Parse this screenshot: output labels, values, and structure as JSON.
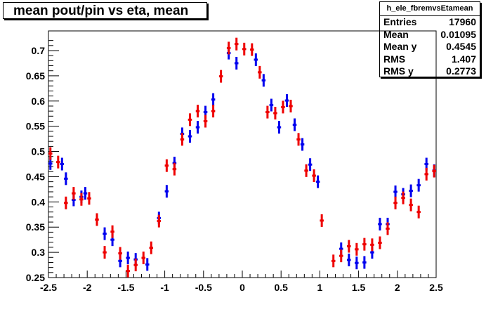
{
  "title": "mean pout/pin vs eta, mean",
  "stats": {
    "name": "h_ele_fbremvsEtamean",
    "rows": [
      {
        "label": "Entries",
        "value": "17960"
      },
      {
        "label": "Mean",
        "value": "0.01095"
      },
      {
        "label": "Mean y",
        "value": "0.4545"
      },
      {
        "label": "RMS",
        "value": "1.407"
      },
      {
        "label": "RMS y",
        "value": "0.2773"
      }
    ]
  },
  "chart_data": {
    "type": "scatter",
    "title": "mean pout/pin vs eta, mean",
    "xlabel": "",
    "ylabel": "",
    "xlim": [
      -2.5,
      2.5
    ],
    "ylim": [
      0.25,
      0.72
    ],
    "x_ticks": [
      "-2.5",
      "-2",
      "-1.5",
      "-1",
      "-0.5",
      "0",
      "0.5",
      "1",
      "1.5",
      "2",
      "2.5"
    ],
    "y_ticks": [
      "0.25",
      "0.3",
      "0.35",
      "0.4",
      "0.45",
      "0.5",
      "0.55",
      "0.6",
      "0.65",
      "0.7"
    ],
    "bin_half_width": 0.025,
    "series": [
      {
        "color": "#0000ee",
        "points": [
          [
            -2.475,
            0.476
          ],
          [
            -2.325,
            0.475
          ],
          [
            -2.275,
            0.446
          ],
          [
            -2.175,
            0.404
          ],
          [
            -2.075,
            0.41
          ],
          [
            -2.025,
            0.417
          ],
          [
            -1.775,
            0.337
          ],
          [
            -1.675,
            0.325
          ],
          [
            -1.575,
            0.283
          ],
          [
            -1.475,
            0.289
          ],
          [
            -1.375,
            0.286
          ],
          [
            -1.225,
            0.276
          ],
          [
            -1.075,
            0.368
          ],
          [
            -0.975,
            0.421
          ],
          [
            -0.875,
            0.477
          ],
          [
            -0.775,
            0.535
          ],
          [
            -0.675,
            0.53
          ],
          [
            -0.575,
            0.548
          ],
          [
            -0.475,
            0.578
          ],
          [
            -0.375,
            0.603
          ],
          [
            -0.175,
            0.695
          ],
          [
            -0.075,
            0.675
          ],
          [
            0.175,
            0.682
          ],
          [
            0.275,
            0.641
          ],
          [
            0.375,
            0.592
          ],
          [
            0.475,
            0.548
          ],
          [
            0.575,
            0.601
          ],
          [
            0.675,
            0.553
          ],
          [
            0.775,
            0.514
          ],
          [
            0.875,
            0.474
          ],
          [
            0.975,
            0.44
          ],
          [
            1.275,
            0.307
          ],
          [
            1.375,
            0.285
          ],
          [
            1.475,
            0.279
          ],
          [
            1.575,
            0.28
          ],
          [
            1.675,
            0.3
          ],
          [
            1.775,
            0.356
          ],
          [
            1.875,
            0.356
          ],
          [
            1.975,
            0.42
          ],
          [
            2.075,
            0.415
          ],
          [
            2.175,
            0.422
          ],
          [
            2.275,
            0.433
          ],
          [
            2.375,
            0.475
          ],
          [
            2.475,
            0.462
          ]
        ]
      },
      {
        "color": "#ee0000",
        "points": [
          [
            -2.475,
            0.496
          ],
          [
            -2.375,
            0.479
          ],
          [
            -2.275,
            0.398
          ],
          [
            -2.175,
            0.417
          ],
          [
            -2.075,
            0.405
          ],
          [
            -1.975,
            0.407
          ],
          [
            -1.875,
            0.365
          ],
          [
            -1.775,
            0.3
          ],
          [
            -1.675,
            0.341
          ],
          [
            -1.575,
            0.298
          ],
          [
            -1.475,
            0.263
          ],
          [
            -1.375,
            0.275
          ],
          [
            -1.275,
            0.289
          ],
          [
            -1.175,
            0.309
          ],
          [
            -1.075,
            0.362
          ],
          [
            -0.975,
            0.472
          ],
          [
            -0.875,
            0.465
          ],
          [
            -0.775,
            0.524
          ],
          [
            -0.675,
            0.563
          ],
          [
            -0.575,
            0.58
          ],
          [
            -0.475,
            0.56
          ],
          [
            -0.375,
            0.58
          ],
          [
            -0.275,
            0.649
          ],
          [
            -0.175,
            0.705
          ],
          [
            -0.075,
            0.713
          ],
          [
            0.025,
            0.703
          ],
          [
            0.125,
            0.702
          ],
          [
            0.225,
            0.657
          ],
          [
            0.325,
            0.578
          ],
          [
            0.425,
            0.576
          ],
          [
            0.525,
            0.588
          ],
          [
            0.625,
            0.59
          ],
          [
            0.725,
            0.524
          ],
          [
            0.825,
            0.462
          ],
          [
            0.925,
            0.452
          ],
          [
            1.025,
            0.363
          ],
          [
            1.175,
            0.283
          ],
          [
            1.275,
            0.293
          ],
          [
            1.375,
            0.312
          ],
          [
            1.475,
            0.306
          ],
          [
            1.575,
            0.316
          ],
          [
            1.675,
            0.315
          ],
          [
            1.775,
            0.319
          ],
          [
            1.875,
            0.347
          ],
          [
            1.975,
            0.398
          ],
          [
            2.075,
            0.408
          ],
          [
            2.175,
            0.394
          ],
          [
            2.275,
            0.38
          ],
          [
            2.375,
            0.455
          ],
          [
            2.475,
            0.461
          ]
        ]
      }
    ]
  }
}
